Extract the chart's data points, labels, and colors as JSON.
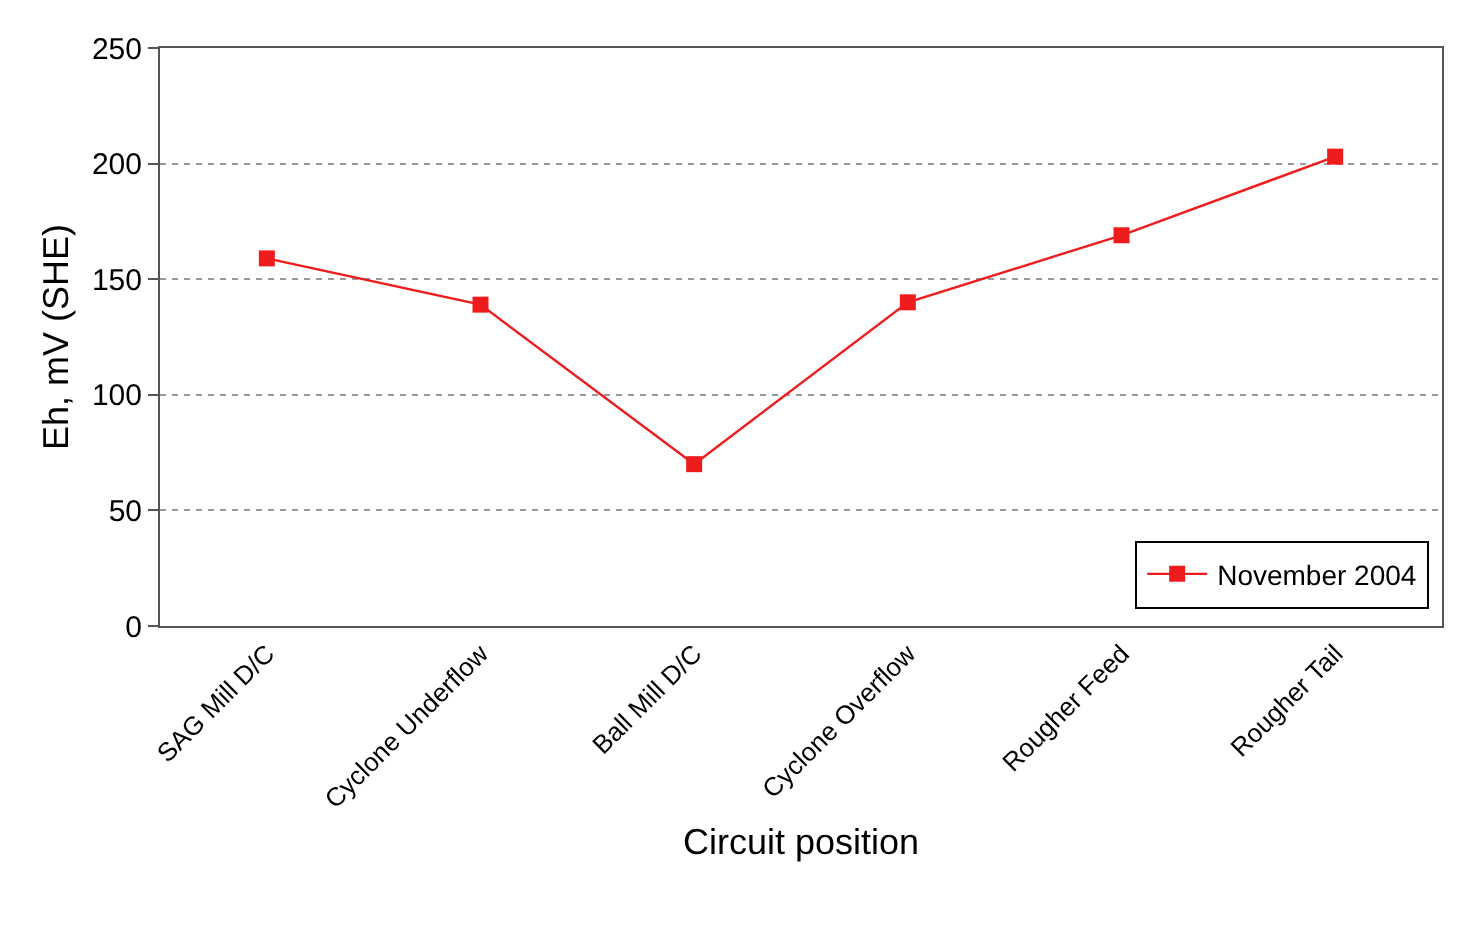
{
  "chart_data": {
    "type": "line",
    "xlabel": "Circuit position",
    "ylabel": "Eh, mV (SHE)",
    "categories": [
      "SAG Mill D/C",
      "Cyclone Underflow",
      "Ball Mill D/C",
      "Cyclone Overflow",
      "Rougher Feed",
      "Rougher Tail"
    ],
    "series": [
      {
        "name": "November 2004",
        "color": "#ee1c1c",
        "values": [
          159,
          139,
          70,
          140,
          169,
          203
        ]
      }
    ],
    "ylim": [
      0,
      250
    ],
    "yticks": [
      0,
      50,
      100,
      150,
      200,
      250
    ],
    "grid": "y",
    "legend": "bottom right",
    "marker": "square",
    "line_style": "solid"
  }
}
